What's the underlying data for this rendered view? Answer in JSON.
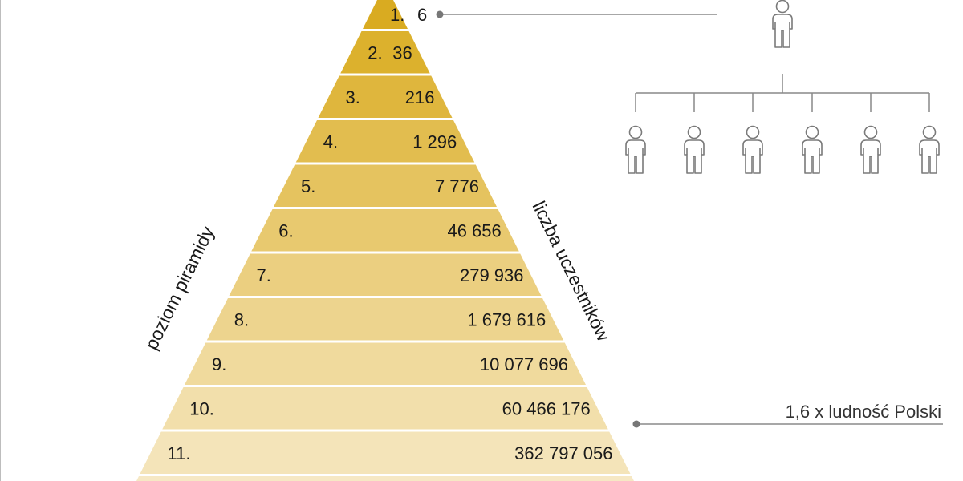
{
  "pyramid": {
    "levels": [
      {
        "level": "1.",
        "count": "6",
        "color": "#d9ab21"
      },
      {
        "level": "2.",
        "count": "36",
        "color": "#dcb12d"
      },
      {
        "level": "3.",
        "count": "216",
        "color": "#dfb63d"
      },
      {
        "level": "4.",
        "count": "1 296",
        "color": "#e2bd4f"
      },
      {
        "level": "5.",
        "count": "7 776",
        "color": "#e5c35f"
      },
      {
        "level": "6.",
        "count": "46 656",
        "color": "#e8c96f"
      },
      {
        "level": "7.",
        "count": "279 936",
        "color": "#ebcf80"
      },
      {
        "level": "8.",
        "count": "1 679 616",
        "color": "#edd48e"
      },
      {
        "level": "9.",
        "count": "10 077 696",
        "color": "#f0da9d"
      },
      {
        "level": "10.",
        "count": "60 466 176",
        "color": "#f2dfab"
      },
      {
        "level": "11.",
        "count": "362 797 056",
        "color": "#f4e4b9"
      },
      {
        "level": "",
        "count": "",
        "color": "#f6e8c4"
      }
    ]
  },
  "labels": {
    "left_axis": "poziom piramidy",
    "right_axis": "liczba uczestników",
    "note": "1,6 x ludność Polski"
  },
  "recruit_diagram": {
    "top_icon": "person-icon",
    "children_count": 6,
    "child_icon": "person-icon",
    "line_color": "#777777"
  }
}
